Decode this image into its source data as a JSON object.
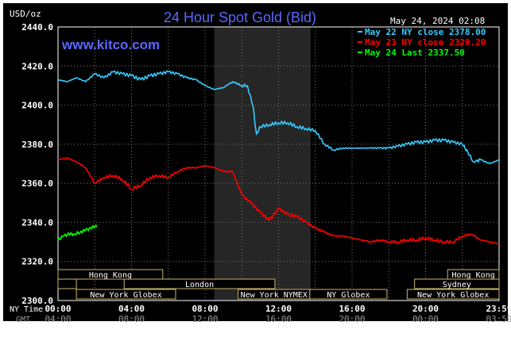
{
  "chart_data": {
    "type": "line",
    "title": "24 Hour Spot Gold (Bid)",
    "unit_label": "USD/oz",
    "timestamp": "May 24, 2024 02:08",
    "watermark": "www.kitco.com",
    "ylim": [
      2300,
      2440
    ],
    "y_ticks": [
      {
        "value": 2300,
        "label": "2300.0"
      },
      {
        "value": 2320,
        "label": "2320.0"
      },
      {
        "value": 2340,
        "label": "2340.0"
      },
      {
        "value": 2360,
        "label": "2360.0"
      },
      {
        "value": 2380,
        "label": "2380.0"
      },
      {
        "value": 2400,
        "label": "2400.0"
      },
      {
        "value": 2420,
        "label": "2420.0"
      },
      {
        "value": 2440,
        "label": "2440.0"
      }
    ],
    "x_range_hours": [
      0,
      24
    ],
    "x_axis_rows": [
      {
        "label": "NY Time",
        "ticks": [
          {
            "hour": 0,
            "text": "00:00"
          },
          {
            "hour": 4,
            "text": "04:00"
          },
          {
            "hour": 8,
            "text": "08:00"
          },
          {
            "hour": 12,
            "text": "12:00"
          },
          {
            "hour": 16,
            "text": "16:00"
          },
          {
            "hour": 20,
            "text": "20:00"
          },
          {
            "hour": 24,
            "text": "23:59"
          }
        ]
      },
      {
        "label": "GMT",
        "ticks": [
          {
            "hour": 0,
            "text": "04:00"
          },
          {
            "hour": 4,
            "text": "08:00"
          },
          {
            "hour": 8,
            "text": "12:00"
          },
          {
            "hour": 12,
            "text": "16:00"
          },
          {
            "hour": 16,
            "text": "20:00"
          },
          {
            "hour": 20,
            "text": "00:00"
          },
          {
            "hour": 24,
            "text": "03:59"
          }
        ]
      }
    ],
    "shaded_session": {
      "start_hour": 8.5,
      "end_hour": 13.75
    },
    "sessions": [
      {
        "name": "Hong Kong",
        "start": 0,
        "end": 5.7,
        "row": 0
      },
      {
        "name": "Hong Kong",
        "start": 21.2,
        "end": 24,
        "row": 0
      },
      {
        "name": "",
        "start": 0,
        "end": 1.0,
        "row": 1
      },
      {
        "name": "London",
        "start": 3.6,
        "end": 11.8,
        "row": 1
      },
      {
        "name": "Sydney",
        "start": 19.4,
        "end": 24,
        "row": 1
      },
      {
        "name": "New York Globex",
        "start": 1.0,
        "end": 6.4,
        "row": 2
      },
      {
        "name": "New York NYMEX",
        "start": 9.8,
        "end": 13.7,
        "row": 2
      },
      {
        "name": "NY Globex",
        "start": 13.7,
        "end": 17.9,
        "row": 2
      },
      {
        "name": "New York Globex",
        "start": 19.0,
        "end": 24,
        "row": 2
      }
    ],
    "series": [
      {
        "name": "May 22 NY close 2378.00",
        "color": "#33ccff",
        "x": [
          0,
          0.5,
          1,
          1.5,
          2,
          2.5,
          3,
          3.5,
          4,
          4.5,
          5,
          5.5,
          6,
          6.5,
          7,
          7.5,
          8,
          8.5,
          9,
          9.5,
          10,
          10.3,
          10.6,
          10.8,
          11,
          11.5,
          12,
          12.5,
          13,
          13.5,
          14,
          14.5,
          15,
          15.5,
          16,
          16.5,
          17,
          17.5,
          18,
          18.5,
          19,
          19.5,
          20,
          20.5,
          21,
          21.5,
          22,
          22.3,
          22.6,
          23,
          23.5,
          24
        ],
        "values": [
          2413,
          2412,
          2414,
          2412,
          2416,
          2414,
          2417,
          2416,
          2415,
          2413,
          2415,
          2416,
          2417,
          2416,
          2414,
          2413,
          2410,
          2408,
          2409,
          2412,
          2410,
          2410,
          2400,
          2385,
          2389,
          2390,
          2391,
          2391,
          2389,
          2388,
          2387,
          2380,
          2377,
          2378,
          2378,
          2378,
          2378,
          2378,
          2378,
          2379,
          2380,
          2381,
          2381,
          2382,
          2382,
          2381,
          2380,
          2376,
          2371,
          2372,
          2370,
          2372
        ]
      },
      {
        "name": "May 23 NY close 2329.20",
        "color": "#ff0000",
        "x": [
          0,
          0.5,
          1,
          1.5,
          2,
          2.5,
          3,
          3.5,
          4,
          4.5,
          5,
          5.5,
          6,
          6.5,
          7,
          7.5,
          8,
          8.5,
          9,
          9.5,
          10,
          10.5,
          11,
          11.5,
          12,
          12.5,
          13,
          13.5,
          14,
          14.5,
          15,
          15.5,
          16,
          16.5,
          17,
          17.5,
          18,
          18.5,
          19,
          19.5,
          20,
          20.5,
          21,
          21.5,
          22,
          22.5,
          23,
          23.5,
          24
        ],
        "values": [
          2372,
          2373,
          2371,
          2368,
          2360,
          2363,
          2364,
          2362,
          2357,
          2359,
          2363,
          2364,
          2363,
          2366,
          2368,
          2368,
          2369,
          2368,
          2366,
          2366,
          2354,
          2350,
          2345,
          2341,
          2347,
          2344,
          2343,
          2340,
          2337,
          2335,
          2333,
          2333,
          2332,
          2331,
          2330,
          2331,
          2330,
          2330,
          2331,
          2331,
          2332,
          2331,
          2330,
          2330,
          2333,
          2334,
          2331,
          2330,
          2329
        ]
      },
      {
        "name": "May 24 Last 2337.50",
        "color": "#00ff00",
        "x": [
          0,
          0.3,
          0.6,
          0.9,
          1.2,
          1.5,
          1.8,
          2.0,
          2.1
        ],
        "values": [
          2331,
          2333,
          2334,
          2334,
          2335,
          2336,
          2337,
          2338,
          2337.5
        ]
      }
    ]
  }
}
